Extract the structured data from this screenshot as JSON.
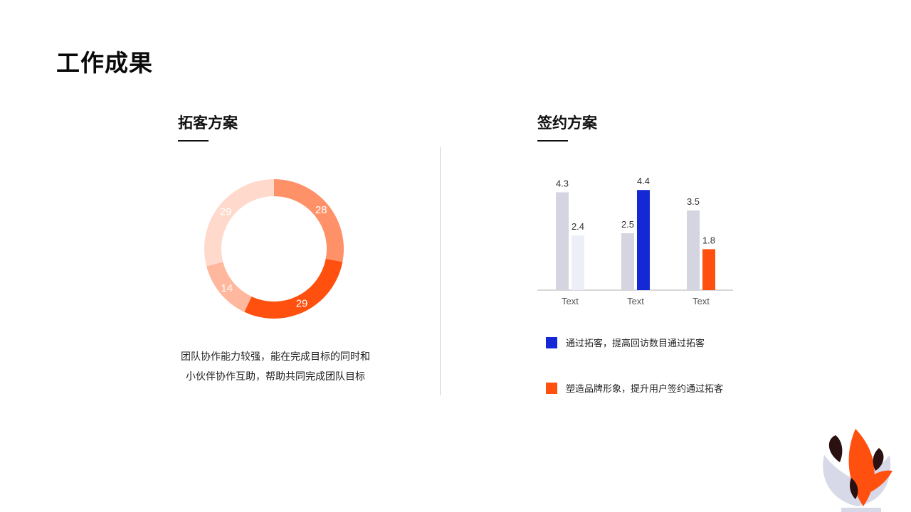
{
  "page": {
    "title": "工作成果"
  },
  "left_section": {
    "title": "拓客方案",
    "description": "团队协作能力较强，能在完成目标的同时和小伙伴协作互助，帮助共同完成团队目标"
  },
  "right_section": {
    "title": "签约方案",
    "legend": [
      {
        "label": "通过拓客，提高回访数目通过拓客",
        "color": "#1428d6"
      },
      {
        "label": "塑造品牌形象，提升用户签约通过拓客",
        "color": "#ff5010"
      }
    ]
  },
  "chart_data": [
    {
      "type": "pie",
      "donut": true,
      "title": "",
      "slices": [
        {
          "value": 28,
          "color": "#ff9169"
        },
        {
          "value": 29,
          "color": "#ff5010"
        },
        {
          "value": 14,
          "color": "#ffb79e"
        },
        {
          "value": 29,
          "color": "#ffd9cb"
        }
      ]
    },
    {
      "type": "bar",
      "title": "",
      "categories": [
        "Text",
        "Text",
        "Text"
      ],
      "series": [
        {
          "values": [
            4.3,
            2.5,
            3.5
          ],
          "colors": [
            "#d4d5e0",
            "#d4d5e0",
            "#d4d5e0"
          ]
        },
        {
          "values": [
            2.4,
            4.4,
            1.8
          ],
          "colors": [
            "#edeff8",
            "#1428d6",
            "#ff5010"
          ]
        }
      ],
      "ylim": [
        0,
        5
      ],
      "grid": false
    }
  ]
}
